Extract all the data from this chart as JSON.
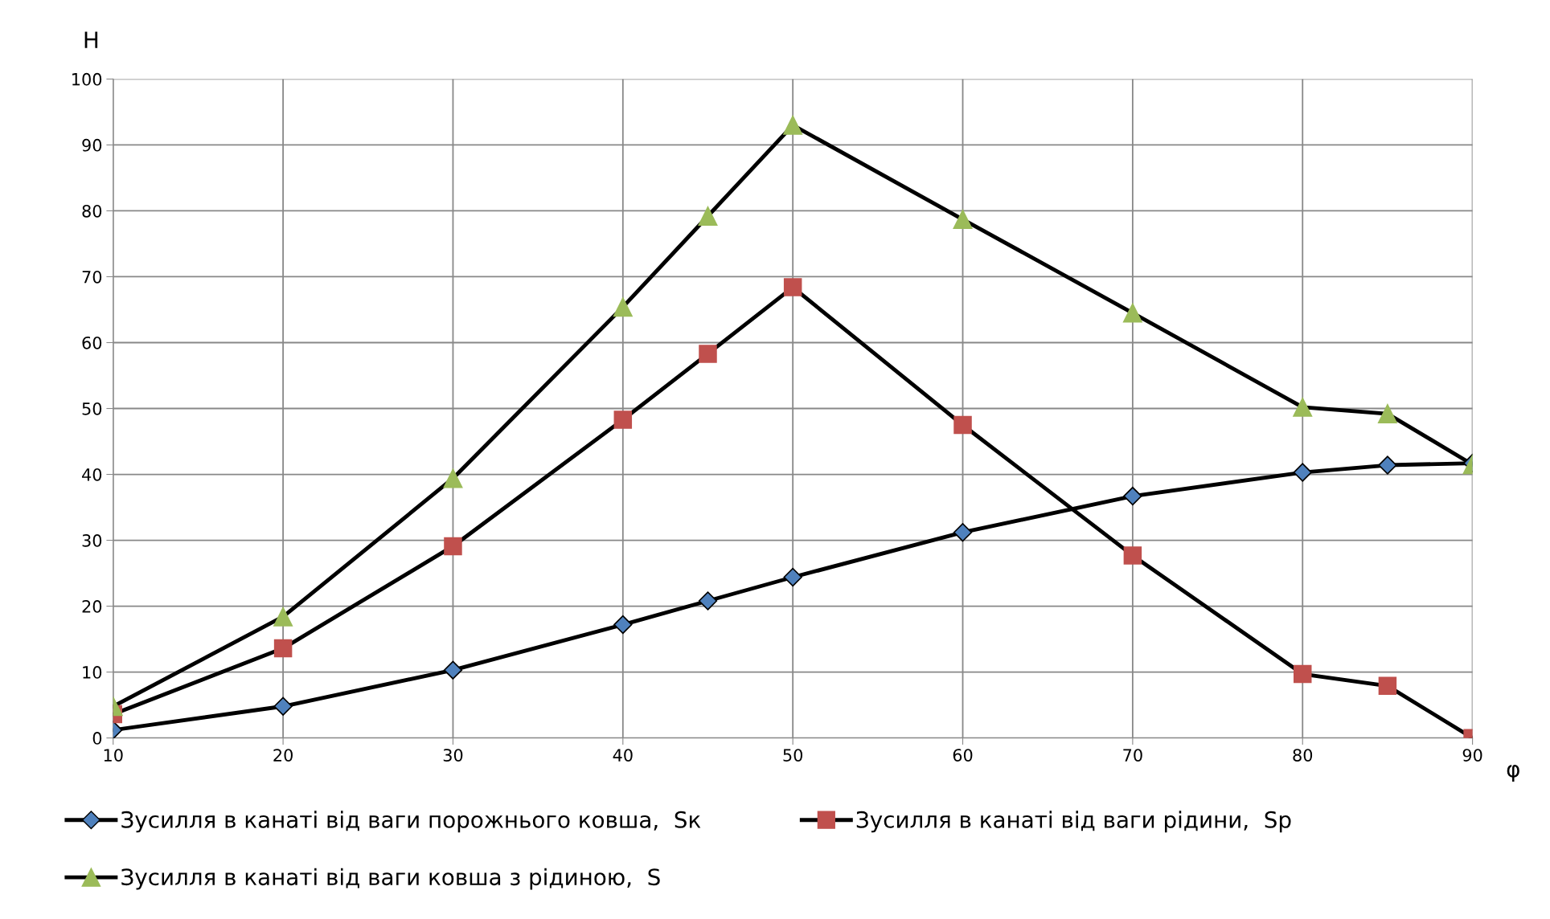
{
  "chart_data": {
    "type": "line",
    "xlabel": "φ",
    "ylabel": "Н",
    "x": [
      10,
      20,
      30,
      40,
      45,
      50,
      60,
      70,
      80,
      85,
      90
    ],
    "series": [
      {
        "name": "Зусилля в канаті від ваги порожнього ковша,  Sк",
        "color": "#4f81bd",
        "marker": "diamond",
        "values": [
          1.2,
          4.8,
          10.3,
          17.2,
          20.8,
          24.4,
          31.2,
          36.7,
          40.3,
          41.4,
          41.7
        ]
      },
      {
        "name": "Зусилля в канаті від ваги рідини,  Sр",
        "color": "#c0504d",
        "marker": "square",
        "values": [
          3.6,
          13.6,
          29.1,
          48.3,
          58.3,
          68.4,
          47.5,
          27.7,
          9.7,
          7.9,
          0
        ]
      },
      {
        "name": "Зусилля в канаті від ваги ковша з рідиною,  S",
        "color": "#9bbb59",
        "marker": "triangle",
        "values": [
          4.8,
          18.4,
          39.4,
          65.4,
          79.2,
          93,
          78.7,
          64.5,
          50.2,
          49.2,
          41.5
        ]
      }
    ],
    "xlim": [
      10,
      90
    ],
    "xticks": [
      10,
      20,
      30,
      40,
      50,
      60,
      70,
      80,
      90
    ],
    "ylim": [
      0,
      100
    ],
    "yticks": [
      0,
      10,
      20,
      30,
      40,
      50,
      60,
      70,
      80,
      90,
      100
    ],
    "grid": true,
    "legend": "bottom",
    "line_style": "solid"
  }
}
